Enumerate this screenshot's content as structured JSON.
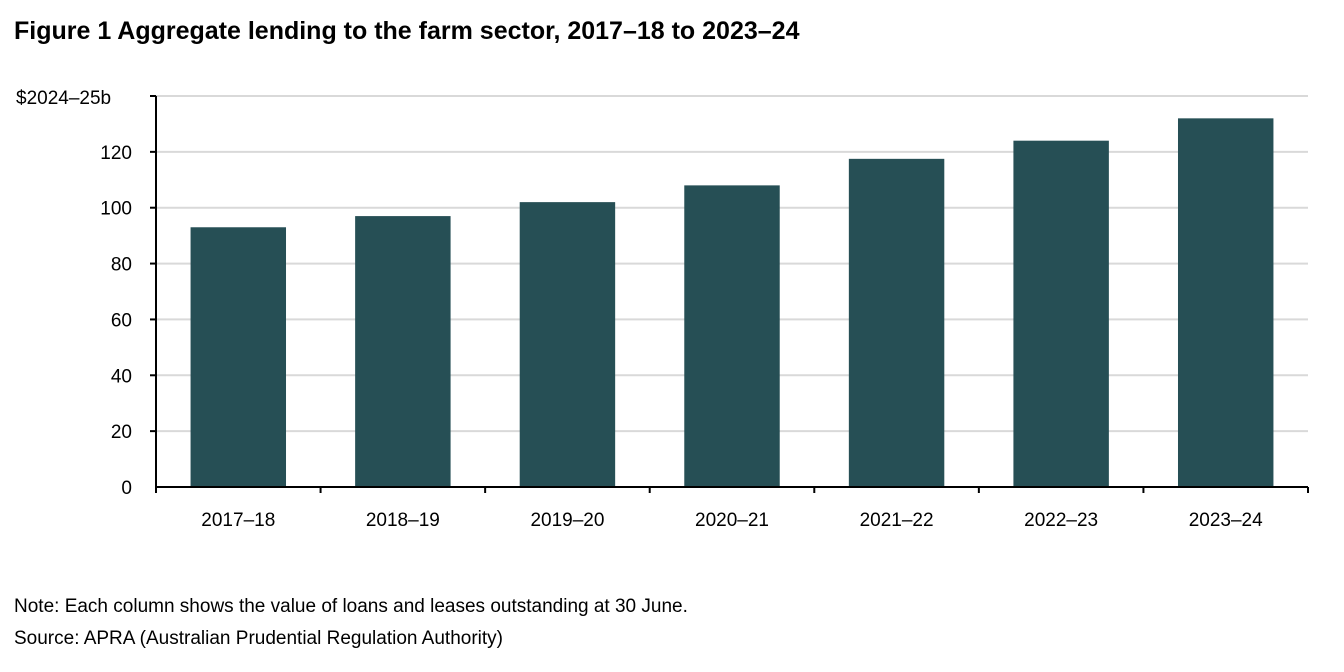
{
  "title": "Figure 1 Aggregate lending to the farm sector, 2017–18 to 2023–24",
  "note": "Note: Each column shows the value of loans and leases outstanding at 30 June.",
  "source": "Source: APRA (Australian Prudential Regulation Authority)",
  "chart_data": {
    "type": "bar",
    "title": "Figure 1 Aggregate lending to the farm sector, 2017–18 to 2023–24",
    "xlabel": "",
    "ylabel": "$2024–25b",
    "categories": [
      "2017–18",
      "2018–19",
      "2019–20",
      "2020–21",
      "2021–22",
      "2022–23",
      "2023–24"
    ],
    "series": [
      {
        "values": [
          93,
          97,
          102,
          108,
          117.5,
          124,
          132
        ]
      }
    ],
    "ylim": [
      0,
      140
    ],
    "yticks": [
      0,
      20,
      40,
      60,
      80,
      100,
      120
    ],
    "grid": true,
    "legend": "none",
    "bar_color": "#264f55",
    "grid_color": "#d9d9d9",
    "axis_color": "#000000"
  }
}
